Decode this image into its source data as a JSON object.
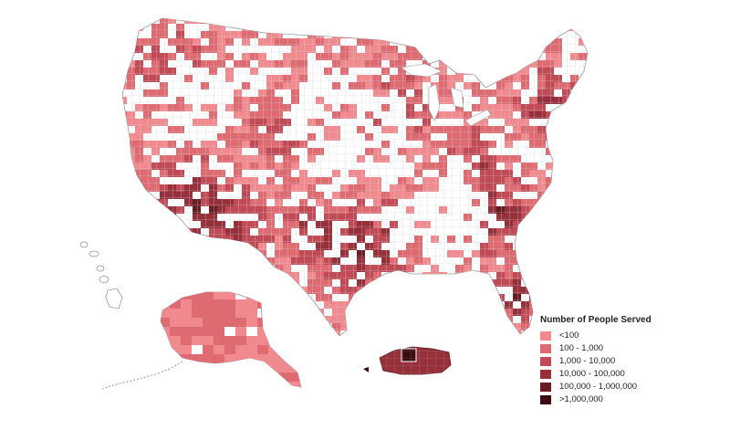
{
  "legend": {
    "title": "Number of People Served",
    "classes": [
      {
        "label": "<100",
        "color": "#f08a8f"
      },
      {
        "label": "100 - 1,000",
        "color": "#de6a72"
      },
      {
        "label": "1,000 - 10,000",
        "color": "#c04a55"
      },
      {
        "label": "10,000 - 100,000",
        "color": "#96303a"
      },
      {
        "label": "100,000 - 1,000,000",
        "color": "#671d24"
      },
      {
        "label": ">1,000,000",
        "color": "#3a0b10"
      }
    ]
  },
  "map": {
    "regions_shown": [
      "Contiguous United States",
      "Alaska",
      "Hawaii",
      "Puerto Rico"
    ],
    "county_outline_color": "#d6d6d6",
    "no_data_color": "#ffffff"
  }
}
